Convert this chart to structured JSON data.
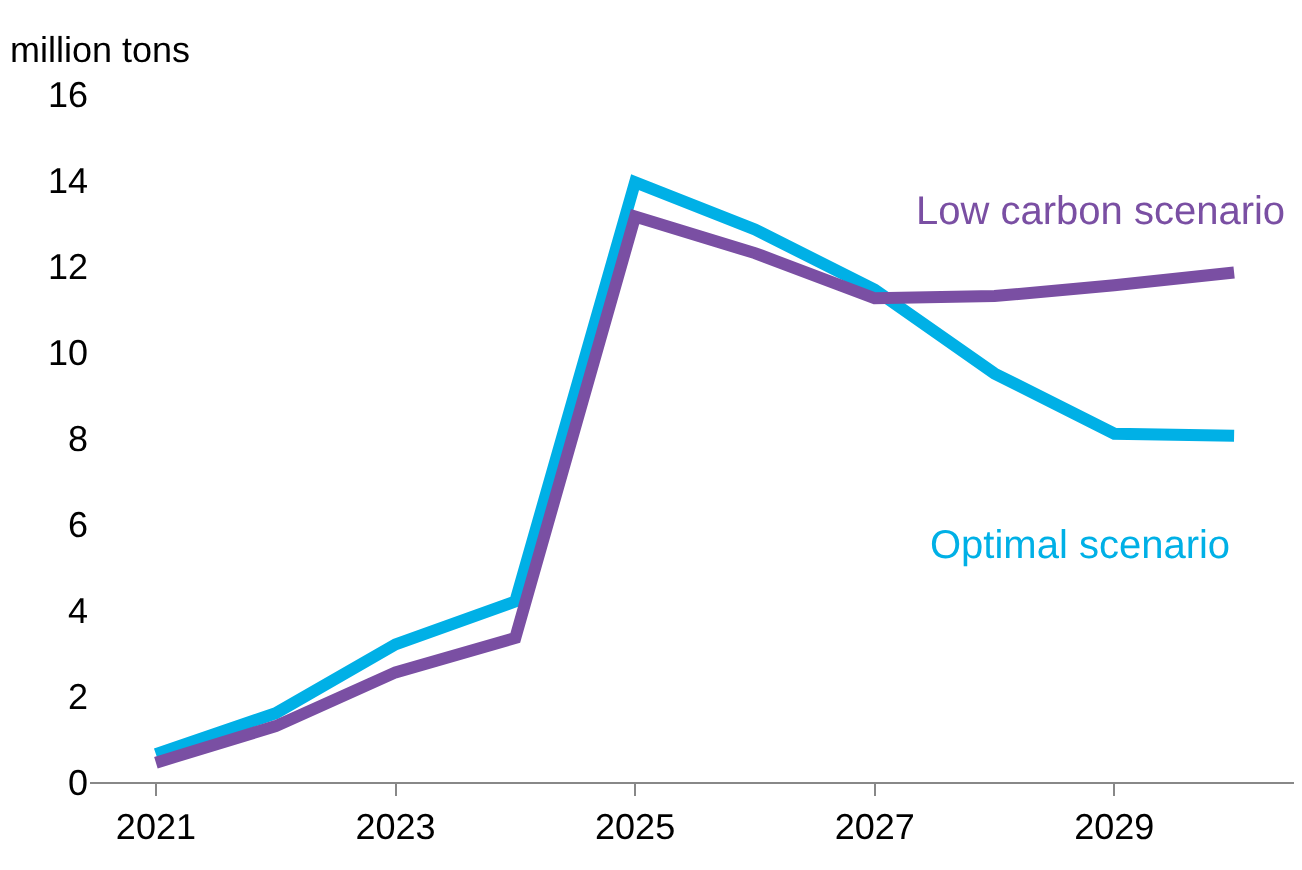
{
  "chart_data": {
    "type": "line",
    "ylabel": "million tons",
    "x": [
      2021,
      2022,
      2023,
      2024,
      2025,
      2026,
      2027,
      2028,
      2029,
      2030
    ],
    "series": [
      {
        "name": "Optimal scenario",
        "color": "#00b0e6",
        "values": [
          0.65,
          1.6,
          3.2,
          4.2,
          13.95,
          12.85,
          11.45,
          9.5,
          8.1,
          8.05
        ]
      },
      {
        "name": "Low carbon scenario",
        "color": "#7a4fa3",
        "values": [
          0.45,
          1.3,
          2.55,
          3.35,
          13.15,
          12.3,
          11.25,
          11.3,
          11.55,
          11.85
        ]
      }
    ],
    "xlim": [
      2020.45,
      2030.5
    ],
    "xticks": [
      2021,
      2023,
      2025,
      2027,
      2029
    ],
    "ylim": [
      0,
      16
    ],
    "yticks": [
      0,
      2,
      4,
      6,
      8,
      10,
      12,
      14,
      16
    ],
    "grid": false,
    "legend": false,
    "marker": "none",
    "line_style": "solid"
  }
}
